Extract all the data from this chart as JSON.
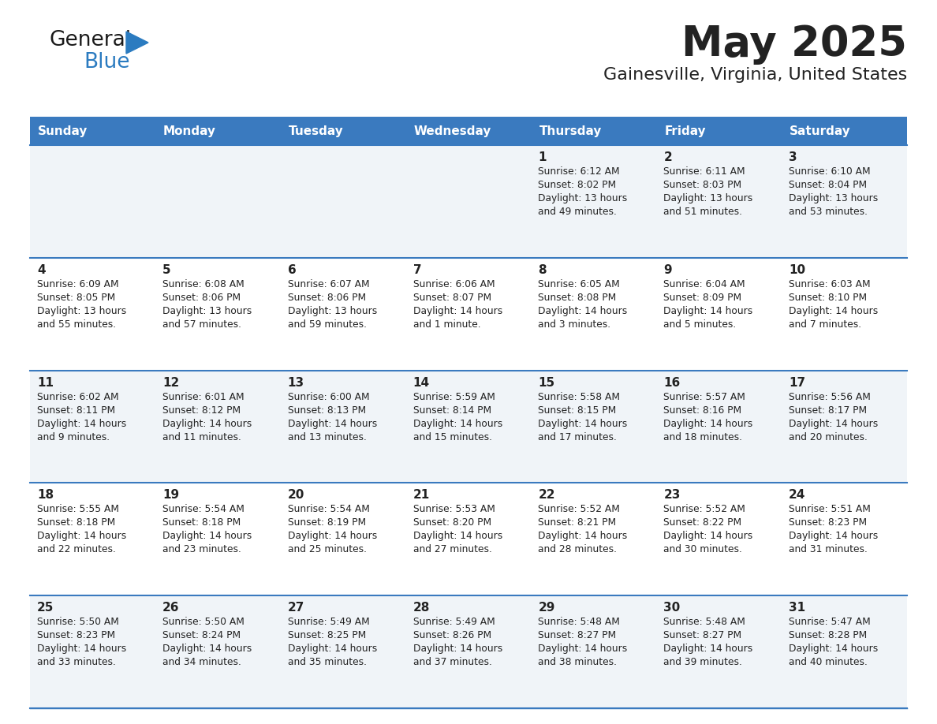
{
  "title": "May 2025",
  "subtitle": "Gainesville, Virginia, United States",
  "days_of_week": [
    "Sunday",
    "Monday",
    "Tuesday",
    "Wednesday",
    "Thursday",
    "Friday",
    "Saturday"
  ],
  "header_bg": "#3a7abf",
  "header_text_color": "#ffffff",
  "row_bg_odd": "#f0f4f8",
  "row_bg_even": "#ffffff",
  "cell_border_color": "#3a7abf",
  "text_color": "#222222",
  "calendar_data": [
    [
      {
        "day": null,
        "sunrise": null,
        "sunset": null,
        "daylight": null
      },
      {
        "day": null,
        "sunrise": null,
        "sunset": null,
        "daylight": null
      },
      {
        "day": null,
        "sunrise": null,
        "sunset": null,
        "daylight": null
      },
      {
        "day": null,
        "sunrise": null,
        "sunset": null,
        "daylight": null
      },
      {
        "day": 1,
        "sunrise": "6:12 AM",
        "sunset": "8:02 PM",
        "daylight": "13 hours\nand 49 minutes."
      },
      {
        "day": 2,
        "sunrise": "6:11 AM",
        "sunset": "8:03 PM",
        "daylight": "13 hours\nand 51 minutes."
      },
      {
        "day": 3,
        "sunrise": "6:10 AM",
        "sunset": "8:04 PM",
        "daylight": "13 hours\nand 53 minutes."
      }
    ],
    [
      {
        "day": 4,
        "sunrise": "6:09 AM",
        "sunset": "8:05 PM",
        "daylight": "13 hours\nand 55 minutes."
      },
      {
        "day": 5,
        "sunrise": "6:08 AM",
        "sunset": "8:06 PM",
        "daylight": "13 hours\nand 57 minutes."
      },
      {
        "day": 6,
        "sunrise": "6:07 AM",
        "sunset": "8:06 PM",
        "daylight": "13 hours\nand 59 minutes."
      },
      {
        "day": 7,
        "sunrise": "6:06 AM",
        "sunset": "8:07 PM",
        "daylight": "14 hours\nand 1 minute."
      },
      {
        "day": 8,
        "sunrise": "6:05 AM",
        "sunset": "8:08 PM",
        "daylight": "14 hours\nand 3 minutes."
      },
      {
        "day": 9,
        "sunrise": "6:04 AM",
        "sunset": "8:09 PM",
        "daylight": "14 hours\nand 5 minutes."
      },
      {
        "day": 10,
        "sunrise": "6:03 AM",
        "sunset": "8:10 PM",
        "daylight": "14 hours\nand 7 minutes."
      }
    ],
    [
      {
        "day": 11,
        "sunrise": "6:02 AM",
        "sunset": "8:11 PM",
        "daylight": "14 hours\nand 9 minutes."
      },
      {
        "day": 12,
        "sunrise": "6:01 AM",
        "sunset": "8:12 PM",
        "daylight": "14 hours\nand 11 minutes."
      },
      {
        "day": 13,
        "sunrise": "6:00 AM",
        "sunset": "8:13 PM",
        "daylight": "14 hours\nand 13 minutes."
      },
      {
        "day": 14,
        "sunrise": "5:59 AM",
        "sunset": "8:14 PM",
        "daylight": "14 hours\nand 15 minutes."
      },
      {
        "day": 15,
        "sunrise": "5:58 AM",
        "sunset": "8:15 PM",
        "daylight": "14 hours\nand 17 minutes."
      },
      {
        "day": 16,
        "sunrise": "5:57 AM",
        "sunset": "8:16 PM",
        "daylight": "14 hours\nand 18 minutes."
      },
      {
        "day": 17,
        "sunrise": "5:56 AM",
        "sunset": "8:17 PM",
        "daylight": "14 hours\nand 20 minutes."
      }
    ],
    [
      {
        "day": 18,
        "sunrise": "5:55 AM",
        "sunset": "8:18 PM",
        "daylight": "14 hours\nand 22 minutes."
      },
      {
        "day": 19,
        "sunrise": "5:54 AM",
        "sunset": "8:18 PM",
        "daylight": "14 hours\nand 23 minutes."
      },
      {
        "day": 20,
        "sunrise": "5:54 AM",
        "sunset": "8:19 PM",
        "daylight": "14 hours\nand 25 minutes."
      },
      {
        "day": 21,
        "sunrise": "5:53 AM",
        "sunset": "8:20 PM",
        "daylight": "14 hours\nand 27 minutes."
      },
      {
        "day": 22,
        "sunrise": "5:52 AM",
        "sunset": "8:21 PM",
        "daylight": "14 hours\nand 28 minutes."
      },
      {
        "day": 23,
        "sunrise": "5:52 AM",
        "sunset": "8:22 PM",
        "daylight": "14 hours\nand 30 minutes."
      },
      {
        "day": 24,
        "sunrise": "5:51 AM",
        "sunset": "8:23 PM",
        "daylight": "14 hours\nand 31 minutes."
      }
    ],
    [
      {
        "day": 25,
        "sunrise": "5:50 AM",
        "sunset": "8:23 PM",
        "daylight": "14 hours\nand 33 minutes."
      },
      {
        "day": 26,
        "sunrise": "5:50 AM",
        "sunset": "8:24 PM",
        "daylight": "14 hours\nand 34 minutes."
      },
      {
        "day": 27,
        "sunrise": "5:49 AM",
        "sunset": "8:25 PM",
        "daylight": "14 hours\nand 35 minutes."
      },
      {
        "day": 28,
        "sunrise": "5:49 AM",
        "sunset": "8:26 PM",
        "daylight": "14 hours\nand 37 minutes."
      },
      {
        "day": 29,
        "sunrise": "5:48 AM",
        "sunset": "8:27 PM",
        "daylight": "14 hours\nand 38 minutes."
      },
      {
        "day": 30,
        "sunrise": "5:48 AM",
        "sunset": "8:27 PM",
        "daylight": "14 hours\nand 39 minutes."
      },
      {
        "day": 31,
        "sunrise": "5:47 AM",
        "sunset": "8:28 PM",
        "daylight": "14 hours\nand 40 minutes."
      }
    ]
  ],
  "logo_general_color": "#1a1a1a",
  "logo_blue_color": "#2b7bc0",
  "logo_triangle_color": "#2b7bc0",
  "fig_width": 11.88,
  "fig_height": 9.18,
  "dpi": 100
}
